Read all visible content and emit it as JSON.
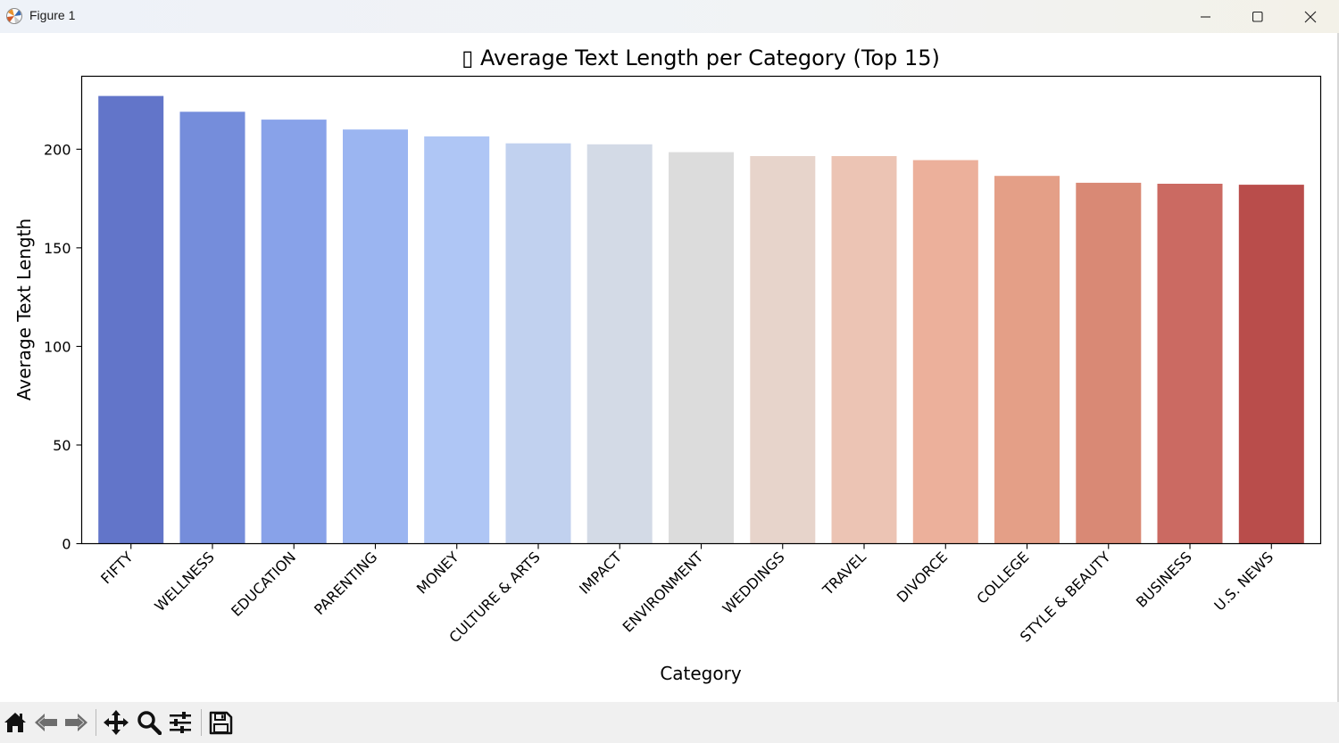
{
  "window": {
    "title": "Figure 1"
  },
  "chart_data": {
    "type": "bar",
    "title": "▯ Average Text Length per Category (Top 15)",
    "xlabel": "Category",
    "ylabel": "Average Text Length",
    "ylim": [
      0,
      237
    ],
    "yticks": [
      0,
      50,
      100,
      150,
      200
    ],
    "grid": false,
    "categories": [
      "FIFTY",
      "WELLNESS",
      "EDUCATION",
      "PARENTING",
      "MONEY",
      "CULTURE & ARTS",
      "IMPACT",
      "ENVIRONMENT",
      "WEDDINGS",
      "TRAVEL",
      "DIVORCE",
      "COLLEGE",
      "STYLE & BEAUTY",
      "BUSINESS",
      "U.S. NEWS"
    ],
    "values": [
      227,
      219,
      215,
      210,
      206.5,
      203,
      202.5,
      198.5,
      196.5,
      196.5,
      194.5,
      186.5,
      183,
      182.5,
      182
    ],
    "colors": [
      "#6275c9",
      "#758ddb",
      "#88a2e9",
      "#9bb5f1",
      "#afc6f5",
      "#c1d1ef",
      "#d3dae6",
      "#dcdcdc",
      "#e7d4cb",
      "#ecc4b4",
      "#ecb09b",
      "#e49f87",
      "#d98975",
      "#cb6a62",
      "#b94d4b"
    ]
  },
  "toolbar": {
    "buttons": [
      "home-icon",
      "back-icon",
      "forward-icon",
      "pan-icon",
      "zoom-icon",
      "configure-icon",
      "save-icon"
    ]
  }
}
